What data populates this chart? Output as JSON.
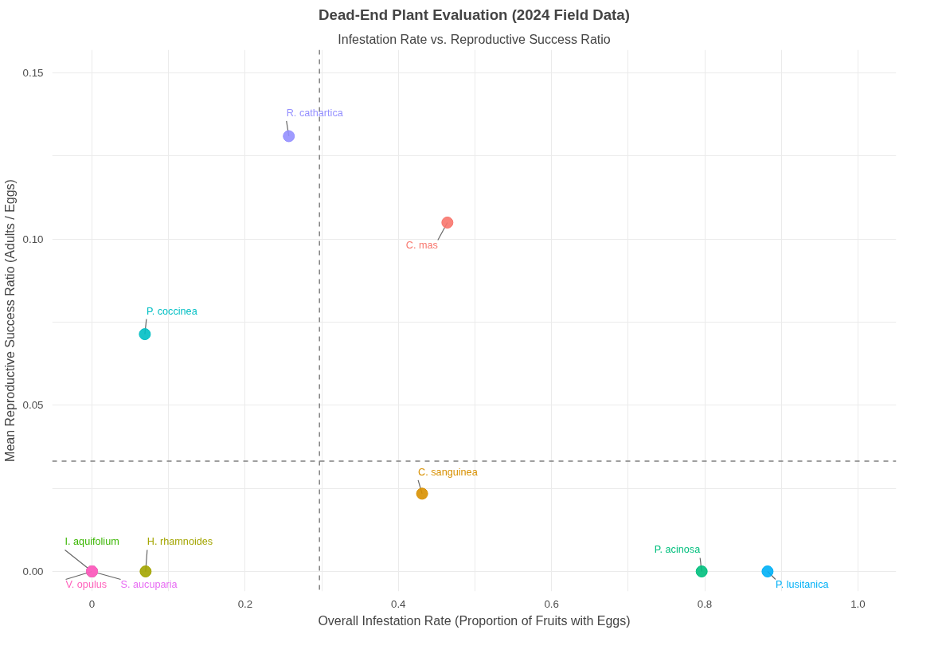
{
  "chart_data": {
    "type": "scatter",
    "title": "Dead-End Plant Evaluation (2024 Field Data)",
    "subtitle": "Infestation Rate vs. Reproductive Success Ratio",
    "xlabel": "Overall Infestation Rate (Proportion of Fruits with Eggs)",
    "ylabel": "Mean Reproductive Success Ratio (Adults / Eggs)",
    "series": [
      {
        "name": "C. mas",
        "color": "#f8766d",
        "x": [
          0.464
        ],
        "values": [
          0.105
        ]
      },
      {
        "name": "C. sanguinea",
        "color": "#d89000",
        "x": [
          0.431
        ],
        "values": [
          0.0234
        ]
      },
      {
        "name": "H. rhamnoides",
        "color": "#a3a500",
        "x": [
          0.07
        ],
        "values": [
          0
        ]
      },
      {
        "name": "I. aquifolium",
        "color": "#39b600",
        "x": [
          0
        ],
        "values": [
          0
        ]
      },
      {
        "name": "P. acinosa",
        "color": "#00bf7d",
        "x": [
          0.796
        ],
        "values": [
          0
        ]
      },
      {
        "name": "P. coccinea",
        "color": "#00bfc4",
        "x": [
          0.069
        ],
        "values": [
          0.0714
        ]
      },
      {
        "name": "P. lusitanica",
        "color": "#00b0f6",
        "x": [
          0.882
        ],
        "values": [
          0
        ]
      },
      {
        "name": "R. cathartica",
        "color": "#9590ff",
        "x": [
          0.257
        ],
        "values": [
          0.131
        ]
      },
      {
        "name": "S. aucuparia",
        "color": "#e76bf3",
        "x": [
          0
        ],
        "values": [
          0
        ]
      },
      {
        "name": "V. opulus",
        "color": "#ff62bc",
        "x": [
          0
        ],
        "values": [
          0
        ]
      }
    ],
    "xlim": [
      -0.052,
      1.05
    ],
    "ylim": [
      -0.006,
      0.157
    ],
    "xticks": [
      0,
      {
        "value": 0.1,
        "label": null
      },
      0.2,
      {
        "value": 0.3,
        "label": null
      },
      0.4,
      {
        "value": 0.5,
        "label": null
      },
      0.6,
      {
        "value": 0.7,
        "label": null
      },
      0.8,
      {
        "value": 0.9,
        "label": null
      },
      {
        "value": 1.0,
        "label": "1.0"
      }
    ],
    "yticks": [
      "0.00",
      {
        "value": 0.025,
        "label": null
      },
      {
        "value": 0.05,
        "label": "0.05"
      },
      {
        "value": 0.075,
        "label": null
      },
      {
        "value": 0.1,
        "label": "0.10"
      },
      {
        "value": 0.125,
        "label": null
      },
      {
        "value": 0.15,
        "label": "0.15"
      }
    ],
    "ref_lines": [
      {
        "axis": "x",
        "value": 0.297,
        "color": "#808080",
        "line_style": "dashed"
      },
      {
        "axis": "y",
        "value": 0.0332,
        "color": "#808080",
        "line_style": "dashed"
      }
    ],
    "grid": true,
    "legend": false,
    "marker": "circle"
  }
}
